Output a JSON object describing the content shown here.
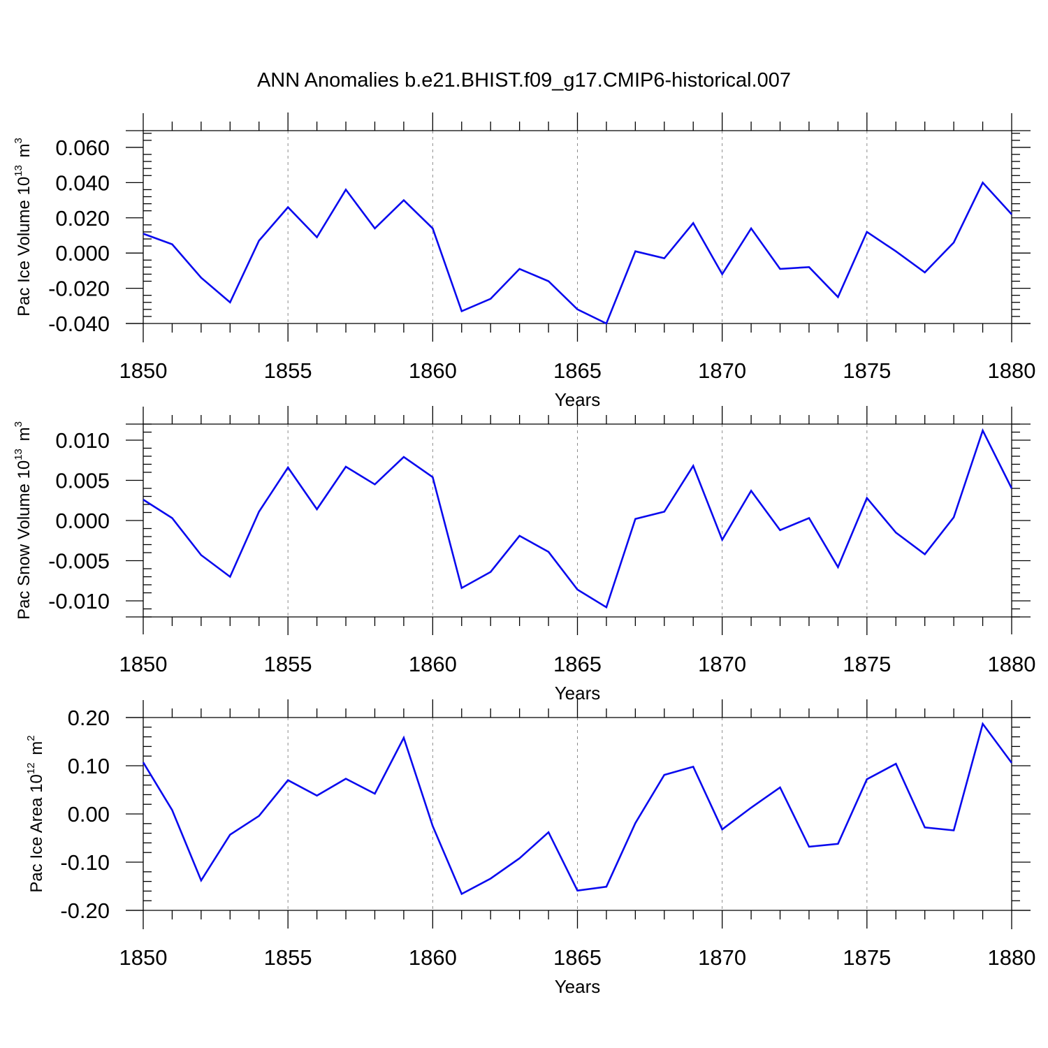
{
  "figure_title": "ANN Anomalies b.e21.BHIST.f09_g17.CMIP6-historical.007",
  "colors": {
    "series": "#0a0aee",
    "axes": "#000000",
    "grid": "#8c8c8c"
  },
  "chart_data": [
    {
      "type": "line",
      "title": "ANN Anomalies b.e21.BHIST.f09_g17.CMIP6-historical.007",
      "xlabel": "Years",
      "ylabel_text": "Pac Ice Volume 10",
      "ylabel_exp": "13",
      "ylabel_unit": "m",
      "ylabel_unit_exp": "3",
      "xlim": [
        1850,
        1880
      ],
      "ylim": [
        -0.04,
        0.0695
      ],
      "xticks": [
        1850,
        1855,
        1860,
        1865,
        1870,
        1875,
        1880
      ],
      "xtick_labels": [
        "1850",
        "1855",
        "1860",
        "1865",
        "1870",
        "1875",
        "1880"
      ],
      "yticks": [
        -0.04,
        -0.02,
        0.0,
        0.02,
        0.04,
        0.06
      ],
      "ytick_labels": [
        "-0.040",
        "-0.020",
        "0.000",
        "0.020",
        "0.040",
        "0.060"
      ],
      "x": [
        1850,
        1851,
        1852,
        1853,
        1854,
        1855,
        1856,
        1857,
        1858,
        1859,
        1860,
        1861,
        1862,
        1863,
        1864,
        1865,
        1866,
        1867,
        1868,
        1869,
        1870,
        1871,
        1872,
        1873,
        1874,
        1875,
        1876,
        1877,
        1878,
        1879,
        1880
      ],
      "values": [
        0.011,
        0.005,
        -0.014,
        -0.028,
        0.007,
        0.026,
        0.009,
        0.036,
        0.014,
        0.03,
        0.014,
        -0.033,
        -0.026,
        -0.009,
        -0.016,
        -0.032,
        -0.04,
        0.001,
        -0.003,
        0.017,
        -0.012,
        0.014,
        -0.009,
        -0.008,
        -0.025,
        0.012,
        0.001,
        -0.011,
        0.006,
        0.04,
        0.022
      ]
    },
    {
      "type": "line",
      "xlabel": "Years",
      "ylabel_text": "Pac Snow Volume 10",
      "ylabel_exp": "13",
      "ylabel_unit": "m",
      "ylabel_unit_exp": "3",
      "xlim": [
        1850,
        1880
      ],
      "ylim": [
        -0.012,
        0.012
      ],
      "xticks": [
        1850,
        1855,
        1860,
        1865,
        1870,
        1875,
        1880
      ],
      "xtick_labels": [
        "1850",
        "1855",
        "1860",
        "1865",
        "1870",
        "1875",
        "1880"
      ],
      "yticks": [
        -0.01,
        -0.005,
        0.0,
        0.005,
        0.01
      ],
      "ytick_labels": [
        "-0.010",
        "-0.005",
        "0.000",
        "0.005",
        "0.010"
      ],
      "x": [
        1850,
        1851,
        1852,
        1853,
        1854,
        1855,
        1856,
        1857,
        1858,
        1859,
        1860,
        1861,
        1862,
        1863,
        1864,
        1865,
        1866,
        1867,
        1868,
        1869,
        1870,
        1871,
        1872,
        1873,
        1874,
        1875,
        1876,
        1877,
        1878,
        1879,
        1880
      ],
      "values": [
        0.0026,
        0.0003,
        -0.0043,
        -0.007,
        0.0011,
        0.0066,
        0.0014,
        0.0067,
        0.0045,
        0.0079,
        0.0054,
        -0.0084,
        -0.0064,
        -0.0019,
        -0.0039,
        -0.0086,
        -0.0108,
        0.0002,
        0.0011,
        0.0068,
        -0.0024,
        0.0037,
        -0.0012,
        0.0003,
        -0.0058,
        0.0028,
        -0.0015,
        -0.0042,
        0.0004,
        0.0112,
        0.004
      ]
    },
    {
      "type": "line",
      "xlabel": "Years",
      "ylabel_text": "Pac Ice Area 10",
      "ylabel_exp": "12",
      "ylabel_unit": "m",
      "ylabel_unit_exp": "2",
      "xlim": [
        1850,
        1880
      ],
      "ylim": [
        -0.2,
        0.2
      ],
      "xticks": [
        1850,
        1855,
        1860,
        1865,
        1870,
        1875,
        1880
      ],
      "xtick_labels": [
        "1850",
        "1855",
        "1860",
        "1865",
        "1870",
        "1875",
        "1880"
      ],
      "yticks": [
        -0.2,
        -0.1,
        0.0,
        0.1,
        0.2
      ],
      "ytick_labels": [
        "-0.20",
        "-0.10",
        "0.00",
        "0.10",
        "0.20"
      ],
      "x": [
        1850,
        1851,
        1852,
        1853,
        1854,
        1855,
        1856,
        1857,
        1858,
        1859,
        1860,
        1861,
        1862,
        1863,
        1864,
        1865,
        1866,
        1867,
        1868,
        1869,
        1870,
        1871,
        1872,
        1873,
        1874,
        1875,
        1876,
        1877,
        1878,
        1879,
        1880
      ],
      "values": [
        0.107,
        0.008,
        -0.138,
        -0.043,
        -0.004,
        0.07,
        0.038,
        0.073,
        0.042,
        0.158,
        -0.025,
        -0.166,
        -0.134,
        -0.092,
        -0.038,
        -0.159,
        -0.151,
        -0.019,
        0.081,
        0.098,
        -0.032,
        0.013,
        0.055,
        -0.068,
        -0.062,
        0.072,
        0.104,
        -0.028,
        -0.034,
        0.187,
        0.106
      ]
    }
  ]
}
